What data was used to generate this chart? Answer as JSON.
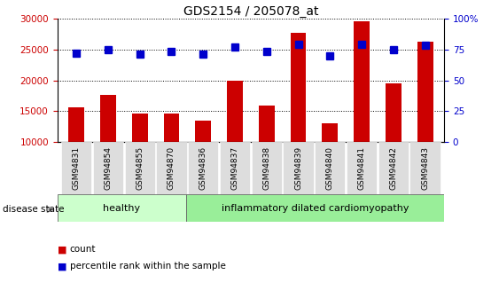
{
  "title": "GDS2154 / 205078_at",
  "categories": [
    "GSM94831",
    "GSM94854",
    "GSM94855",
    "GSM94870",
    "GSM94836",
    "GSM94837",
    "GSM94838",
    "GSM94839",
    "GSM94840",
    "GSM94841",
    "GSM94842",
    "GSM94843"
  ],
  "bar_values": [
    15700,
    17600,
    14600,
    14700,
    13500,
    20000,
    16000,
    27700,
    13100,
    29500,
    19500,
    26200
  ],
  "percentile_values": [
    72,
    75,
    71,
    73,
    71,
    77,
    73,
    79,
    70,
    79,
    75,
    78
  ],
  "bar_color": "#cc0000",
  "percentile_color": "#0000cc",
  "ylim_left": [
    10000,
    30000
  ],
  "ylim_right": [
    0,
    100
  ],
  "yticks_left": [
    10000,
    15000,
    20000,
    25000,
    30000
  ],
  "yticks_right": [
    0,
    25,
    50,
    75,
    100
  ],
  "ytick_labels_right": [
    "0",
    "25",
    "50",
    "75",
    "100%"
  ],
  "disease_groups": [
    {
      "label": "healthy",
      "start": 0,
      "end": 4,
      "color": "#ccffcc"
    },
    {
      "label": "inflammatory dilated cardiomyopathy",
      "start": 4,
      "end": 12,
      "color": "#99ee99"
    }
  ],
  "disease_state_label": "disease state",
  "legend_items": [
    {
      "label": "count",
      "color": "#cc0000"
    },
    {
      "label": "percentile rank within the sample",
      "color": "#0000cc"
    }
  ],
  "tick_label_color_left": "#cc0000",
  "tick_label_color_right": "#0000cc",
  "bar_width": 0.5,
  "marker_size": 6
}
